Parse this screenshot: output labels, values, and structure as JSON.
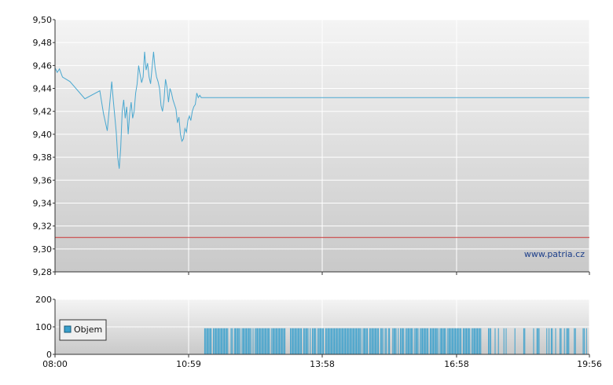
{
  "watermark": "www.patria.cz",
  "colors": {
    "price_line": "#4aa8d0",
    "reference_line": "#cc3333",
    "volume_bar": "#3aa0cc",
    "axis": "#333333",
    "plot_top": "#f4f4f4",
    "plot_bottom": "#c9c9c9"
  },
  "chart_data": [
    {
      "type": "line",
      "panel": "price",
      "title": "",
      "xlabel": "",
      "ylabel": "",
      "ylim": [
        9.28,
        9.5
      ],
      "yticks": [
        "9,50",
        "9,48",
        "9,46",
        "9,44",
        "9,42",
        "9,40",
        "9,38",
        "9,36",
        "9,34",
        "9,32",
        "9,30",
        "9,28"
      ],
      "xticks": [
        "08:00",
        "10:59",
        "13:58",
        "16:58",
        "19:56"
      ],
      "grid": true,
      "reference_line": {
        "value": 9.31
      },
      "series": [
        {
          "x": [
            "08:00",
            "08:03",
            "08:06",
            "08:10",
            "08:20",
            "08:40",
            "09:00",
            "09:05",
            "09:10",
            "09:14",
            "09:16",
            "09:18",
            "09:20",
            "09:22",
            "09:24",
            "09:26",
            "09:28",
            "09:30",
            "09:32",
            "09:34",
            "09:36",
            "09:38",
            "09:40",
            "09:42",
            "09:44",
            "09:46",
            "09:48",
            "09:50",
            "09:52",
            "09:54",
            "09:56",
            "09:58",
            "10:00",
            "10:02",
            "10:04",
            "10:06",
            "10:08",
            "10:10",
            "10:12",
            "10:14",
            "10:16",
            "10:18",
            "10:20",
            "10:22",
            "10:24",
            "10:26",
            "10:28",
            "10:30",
            "10:32",
            "10:34",
            "10:36",
            "10:38",
            "10:40",
            "10:42",
            "10:44",
            "10:46",
            "10:48",
            "10:50",
            "10:52",
            "10:54",
            "10:56",
            "10:58",
            "11:00",
            "11:02",
            "11:04",
            "11:06",
            "11:08",
            "11:10",
            "11:12",
            "11:14",
            "11:16",
            "11:18",
            "11:20",
            "11:22",
            "11:24",
            "11:26",
            "11:28",
            "11:30",
            "11:32",
            "11:34",
            "11:36",
            "11:38",
            "11:40",
            "11:42",
            "19:56"
          ],
          "values": [
            9.458,
            9.454,
            9.457,
            9.45,
            9.446,
            9.431,
            9.438,
            9.418,
            9.403,
            9.432,
            9.446,
            9.43,
            9.416,
            9.402,
            9.38,
            9.37,
            9.388,
            9.42,
            9.43,
            9.414,
            9.424,
            9.4,
            9.418,
            9.428,
            9.414,
            9.42,
            9.436,
            9.444,
            9.46,
            9.452,
            9.445,
            9.45,
            9.472,
            9.456,
            9.462,
            9.45,
            9.444,
            9.458,
            9.472,
            9.458,
            9.45,
            9.446,
            9.44,
            9.425,
            9.42,
            9.43,
            9.448,
            9.441,
            9.428,
            9.44,
            9.436,
            9.43,
            9.426,
            9.422,
            9.41,
            9.415,
            9.4,
            9.394,
            9.396,
            9.405,
            9.402,
            9.412,
            9.416,
            9.412,
            9.42,
            9.424,
            9.426,
            9.436,
            9.432,
            9.434,
            9.432,
            9.432,
            9.432,
            9.432,
            9.432,
            9.432,
            9.432,
            9.432,
            9.432,
            9.432,
            9.432,
            9.432,
            9.432,
            9.432,
            9.432
          ]
        }
      ]
    },
    {
      "type": "bar",
      "panel": "volume",
      "ylim": [
        0,
        200
      ],
      "yticks": [
        "200",
        "100",
        "0"
      ],
      "xticks": [
        "08:00",
        "10:59",
        "13:58",
        "16:58",
        "19:56"
      ],
      "grid": true,
      "legend": {
        "placement": "left",
        "entries": [
          "Objem"
        ]
      },
      "series": [
        {
          "name": "Objem",
          "note_values": "volume bars ~95 at most minutes from about 11:20 to 19:56",
          "start": "11:20",
          "end": "19:56",
          "value": 95
        }
      ]
    }
  ]
}
